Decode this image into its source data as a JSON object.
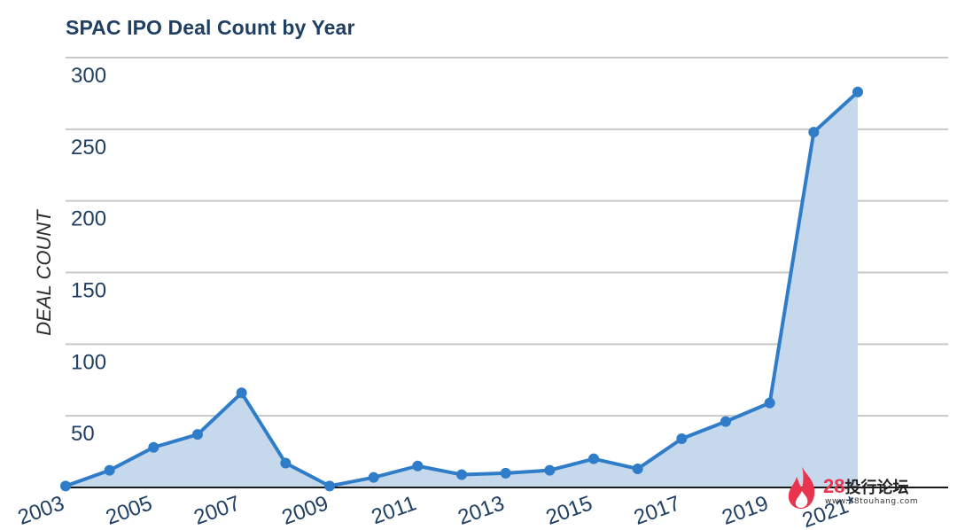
{
  "chart_data": {
    "type": "area",
    "title": "SPAC IPO Deal Count by Year",
    "xlabel": "",
    "ylabel": "DEAL COUNT",
    "years": [
      2003,
      2004,
      2005,
      2006,
      2007,
      2008,
      2009,
      2010,
      2011,
      2012,
      2013,
      2014,
      2015,
      2016,
      2017,
      2018,
      2019,
      2020,
      2021
    ],
    "values": [
      1,
      12,
      28,
      37,
      66,
      17,
      1,
      7,
      15,
      9,
      10,
      12,
      20,
      13,
      34,
      46,
      59,
      248,
      276
    ],
    "x_tick_labels": [
      "2003",
      "2005",
      "2007",
      "2009",
      "2011",
      "2013",
      "2015",
      "2017",
      "2019",
      "2021*"
    ],
    "y_ticks": [
      50,
      100,
      150,
      200,
      250,
      300
    ],
    "ylim": [
      0,
      300
    ],
    "grid": true,
    "colors": {
      "line": "#2f7dc8",
      "fill": "#c5d8ec",
      "grid": "#c8c8c8",
      "axis": "#1a1a1a",
      "tick_text": "#1f3f63"
    }
  },
  "watermark": {
    "brand_number": "28",
    "brand_text": "投行论坛",
    "url": "www.28touhang.com"
  }
}
